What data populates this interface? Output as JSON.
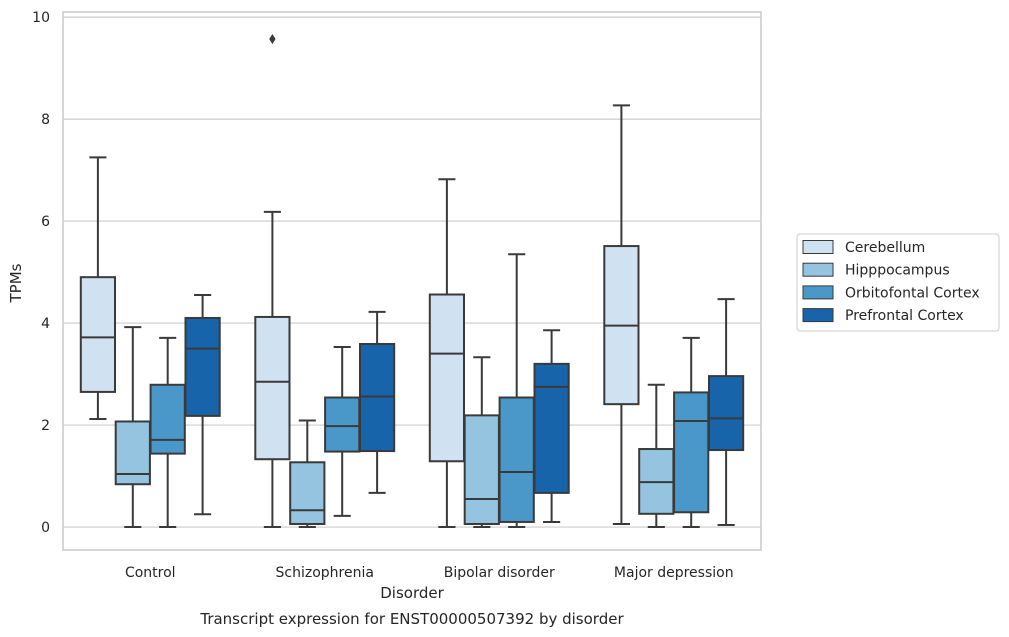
{
  "chart_data": {
    "type": "box",
    "xlabel": "Disorder",
    "ylabel": "TPMs",
    "caption": "Transcript expression for ENST00000507392 by disorder",
    "ylim": [
      -0.45,
      10.1
    ],
    "yticks": [
      0,
      2,
      4,
      6,
      8,
      10
    ],
    "grid": "horizontal",
    "legend_position": "right",
    "categories": [
      "Control",
      "Schizophrenia",
      "Bipolar disorder",
      "Major depression"
    ],
    "series": [
      {
        "name": "Cerebellum",
        "color": "#d0e1f2",
        "boxes": [
          {
            "whisker_low": 2.12,
            "q1": 2.65,
            "median": 3.72,
            "q3": 4.9,
            "whisker_high": 7.25,
            "outliers": []
          },
          {
            "whisker_low": 0.0,
            "q1": 1.33,
            "median": 2.85,
            "q3": 4.12,
            "whisker_high": 6.18,
            "outliers": [
              9.57
            ]
          },
          {
            "whisker_low": 0.0,
            "q1": 1.29,
            "median": 3.4,
            "q3": 4.56,
            "whisker_high": 6.82,
            "outliers": []
          },
          {
            "whisker_low": 0.06,
            "q1": 2.41,
            "median": 3.95,
            "q3": 5.51,
            "whisker_high": 8.27,
            "outliers": []
          }
        ]
      },
      {
        "name": "Hipppocampus",
        "color": "#94c4df",
        "boxes": [
          {
            "whisker_low": 0.0,
            "q1": 0.84,
            "median": 1.04,
            "q3": 2.07,
            "whisker_high": 3.92,
            "outliers": []
          },
          {
            "whisker_low": 0.0,
            "q1": 0.06,
            "median": 0.33,
            "q3": 1.27,
            "whisker_high": 2.09,
            "outliers": []
          },
          {
            "whisker_low": 0.0,
            "q1": 0.06,
            "median": 0.55,
            "q3": 2.19,
            "whisker_high": 3.33,
            "outliers": []
          },
          {
            "whisker_low": 0.0,
            "q1": 0.26,
            "median": 0.88,
            "q3": 1.53,
            "whisker_high": 2.79,
            "outliers": []
          }
        ]
      },
      {
        "name": "Orbitofontal Cortex",
        "color": "#4a98c9",
        "boxes": [
          {
            "whisker_low": 0.0,
            "q1": 1.44,
            "median": 1.71,
            "q3": 2.79,
            "whisker_high": 3.71,
            "outliers": []
          },
          {
            "whisker_low": 0.22,
            "q1": 1.48,
            "median": 1.98,
            "q3": 2.54,
            "whisker_high": 3.53,
            "outliers": []
          },
          {
            "whisker_low": 0.0,
            "q1": 0.1,
            "median": 1.08,
            "q3": 2.54,
            "whisker_high": 5.35,
            "outliers": []
          },
          {
            "whisker_low": 0.0,
            "q1": 0.29,
            "median": 2.08,
            "q3": 2.64,
            "whisker_high": 3.71,
            "outliers": []
          }
        ]
      },
      {
        "name": "Prefrontal Cortex",
        "color": "#1764ab",
        "boxes": [
          {
            "whisker_low": 0.25,
            "q1": 2.18,
            "median": 3.5,
            "q3": 4.1,
            "whisker_high": 4.55,
            "outliers": []
          },
          {
            "whisker_low": 0.67,
            "q1": 1.49,
            "median": 2.56,
            "q3": 3.59,
            "whisker_high": 4.22,
            "outliers": []
          },
          {
            "whisker_low": 0.1,
            "q1": 0.67,
            "median": 2.75,
            "q3": 3.2,
            "whisker_high": 3.86,
            "outliers": []
          },
          {
            "whisker_low": 0.04,
            "q1": 1.51,
            "median": 2.13,
            "q3": 2.96,
            "whisker_high": 4.47,
            "outliers": []
          }
        ]
      }
    ]
  }
}
